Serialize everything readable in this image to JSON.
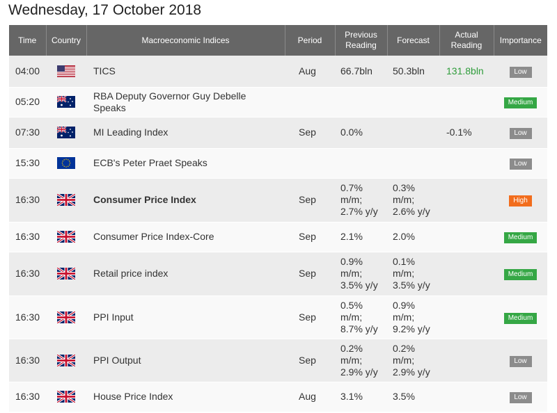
{
  "page": {
    "date_title": "Wednesday, 17 October 2018"
  },
  "table": {
    "headers": {
      "time": "Time",
      "country": "Country",
      "indices": "Macroeconomic Indices",
      "period": "Period",
      "previous_1": "Previous",
      "previous_2": "Reading",
      "forecast": "Forecast",
      "actual_1": "Actual",
      "actual_2": "Reading",
      "importance": "Importance"
    },
    "rows": [
      {
        "time": "04:00",
        "country_icon": "us-flag-icon",
        "name_1": "TICS",
        "name_2": "",
        "period": "Aug",
        "prev_1": "66.7bln",
        "prev_2": "",
        "prev_3": "",
        "fc_1": "50.3bln",
        "fc_2": "",
        "fc_3": "",
        "actual": "131.8bln",
        "importance": "Low"
      },
      {
        "time": "05:20",
        "country_icon": "australia-flag-icon",
        "name_1": "RBA Deputy Governor Guy Debelle",
        "name_2": "Speaks",
        "period": "",
        "prev_1": "",
        "prev_2": "",
        "prev_3": "",
        "fc_1": "",
        "fc_2": "",
        "fc_3": "",
        "actual": "",
        "importance": "Medium"
      },
      {
        "time": "07:30",
        "country_icon": "australia-flag-icon",
        "name_1": "MI Leading Index",
        "name_2": "",
        "period": "Sep",
        "prev_1": "0.0%",
        "prev_2": "",
        "prev_3": "",
        "fc_1": "",
        "fc_2": "",
        "fc_3": "",
        "actual": "-0.1%",
        "importance": "Low"
      },
      {
        "time": "15:30",
        "country_icon": "eu-flag-icon",
        "name_1": "ECB's Peter Praet Speaks",
        "name_2": "",
        "period": "",
        "prev_1": "",
        "prev_2": "",
        "prev_3": "",
        "fc_1": "",
        "fc_2": "",
        "fc_3": "",
        "actual": "",
        "importance": "Low"
      },
      {
        "time": "16:30",
        "country_icon": "uk-flag-icon",
        "name_1": "Consumer Price Index",
        "name_2": "",
        "period": "Sep",
        "prev_1": "0.7%",
        "prev_2": "m/m;",
        "prev_3": "2.7% y/y",
        "fc_1": "0.3%",
        "fc_2": "m/m;",
        "fc_3": "2.6% y/y",
        "actual": "",
        "importance": "High"
      },
      {
        "time": "16:30",
        "country_icon": "uk-flag-icon",
        "name_1": "Consumer Price Index-Core",
        "name_2": "",
        "period": "Sep",
        "prev_1": "2.1%",
        "prev_2": "",
        "prev_3": "",
        "fc_1": "2.0%",
        "fc_2": "",
        "fc_3": "",
        "actual": "",
        "importance": "Medium"
      },
      {
        "time": "16:30",
        "country_icon": "uk-flag-icon",
        "name_1": "Retail price index",
        "name_2": "",
        "period": "Sep",
        "prev_1": "0.9%",
        "prev_2": "m/m;",
        "prev_3": "3.5% y/y",
        "fc_1": "0.1%",
        "fc_2": "m/m;",
        "fc_3": "3.5% y/y",
        "actual": "",
        "importance": "Medium"
      },
      {
        "time": "16:30",
        "country_icon": "uk-flag-icon",
        "name_1": "PPI Input",
        "name_2": "",
        "period": "Sep",
        "prev_1": "0.5%",
        "prev_2": "m/m;",
        "prev_3": "8.7% y/y",
        "fc_1": "0.9%",
        "fc_2": "m/m;",
        "fc_3": "9.2% y/y",
        "actual": "",
        "importance": "Medium"
      },
      {
        "time": "16:30",
        "country_icon": "uk-flag-icon",
        "name_1": "PPI Output",
        "name_2": "",
        "period": "Sep",
        "prev_1": "0.2%",
        "prev_2": "m/m;",
        "prev_3": "2.9% y/y",
        "fc_1": "0.2%",
        "fc_2": "m/m;",
        "fc_3": "2.9% y/y",
        "actual": "",
        "importance": "Low"
      },
      {
        "time": "16:30",
        "country_icon": "uk-flag-icon",
        "name_1": "House Price Index",
        "name_2": "",
        "period": "Aug",
        "prev_1": "3.1%",
        "prev_2": "",
        "prev_3": "",
        "fc_1": "3.5%",
        "fc_2": "",
        "fc_3": "",
        "actual": "",
        "importance": "Low"
      }
    ]
  },
  "colors": {
    "header_bg": "#666666",
    "row_odd": "#ececec",
    "row_even": "#f9f9f9",
    "actual_positive": "#2e9c3a",
    "importance_low": "#8c8c8c",
    "importance_medium": "#35a745",
    "importance_high": "#f26d1d"
  }
}
